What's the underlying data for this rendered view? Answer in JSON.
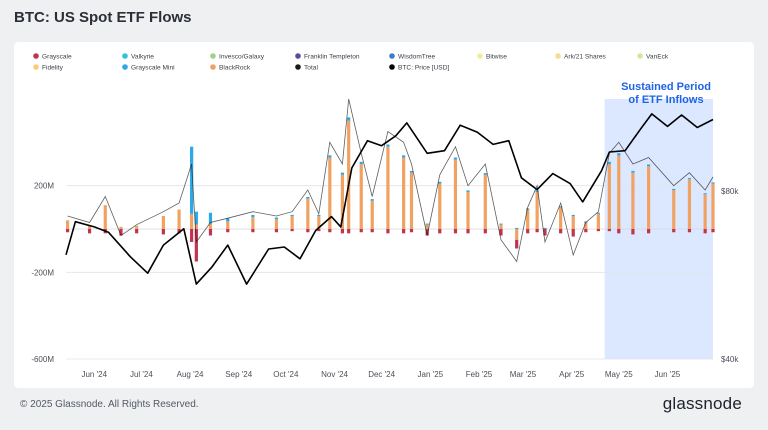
{
  "page": {
    "title": "BTC: US Spot ETF Flows",
    "copyright": "© 2025 Glassnode. All Rights Reserved.",
    "logo": "glassnode"
  },
  "chart_data": {
    "type": "bar",
    "title": "BTC: US Spot ETF Flows",
    "annotation": [
      "Sustained Period",
      "of ETF Inflows"
    ],
    "annotation_color": "#1f63e6",
    "highlight_region": {
      "from": "2025-04-22",
      "to": "2025-06-30",
      "color": "#dbe8ff"
    },
    "legend_position": "top",
    "grid": "horizontal",
    "x_axis": {
      "type": "date",
      "range": [
        "2024-05-14",
        "2025-06-30"
      ],
      "tick_labels": [
        "Jun '24",
        "Jul '24",
        "Aug '24",
        "Sep '24",
        "Oct '24",
        "Nov '24",
        "Dec '24",
        "Jan '25",
        "Feb '25",
        "Mar '25",
        "Apr '25",
        "May '25",
        "Jun '25"
      ],
      "tick_dates": [
        "2024-06-01",
        "2024-07-01",
        "2024-08-01",
        "2024-09-01",
        "2024-10-01",
        "2024-11-01",
        "2024-12-01",
        "2025-01-01",
        "2025-02-01",
        "2025-03-01",
        "2025-04-01",
        "2025-05-01",
        "2025-06-01"
      ]
    },
    "y_axis_left": {
      "label": "",
      "range": [
        -600000000,
        600000000
      ],
      "tick_values": [
        -600000000,
        -200000000,
        200000000
      ],
      "tick_labels": [
        "-600M",
        "-200M",
        "200M"
      ]
    },
    "y_axis_right": {
      "label": "",
      "scale": "log",
      "range": [
        40000,
        117000
      ],
      "tick_values": [
        40000,
        80000
      ],
      "tick_labels": [
        "$40k",
        "$80k"
      ]
    },
    "legend": [
      {
        "name": "Grayscale",
        "color": "#c2334f"
      },
      {
        "name": "Valkyrie",
        "color": "#2ec4d6"
      },
      {
        "name": "Invesco/Galaxy",
        "color": "#9fd18a"
      },
      {
        "name": "Franklin Templeton",
        "color": "#5b4a9e"
      },
      {
        "name": "WisdomTree",
        "color": "#3b7fc4"
      },
      {
        "name": "Bitwise",
        "color": "#f2ed9e"
      },
      {
        "name": "Ark/21 Shares",
        "color": "#f6dc96"
      },
      {
        "name": "VanEck",
        "color": "#cfe89a"
      },
      {
        "name": "Fidelity",
        "color": "#f7cd7a"
      },
      {
        "name": "Grayscale Mini",
        "color": "#2aa8e8"
      },
      {
        "name": "BlackRock",
        "color": "#f0a262"
      },
      {
        "name": "Total",
        "color": "#1a1a1a"
      },
      {
        "name": "BTC: Price [USD]",
        "color": "#000000"
      }
    ],
    "series_flows_usd": {
      "dates": [
        "2024-05-15",
        "2024-05-29",
        "2024-06-08",
        "2024-06-18",
        "2024-06-28",
        "2024-07-15",
        "2024-07-25",
        "2024-08-02",
        "2024-08-05",
        "2024-08-14",
        "2024-08-25",
        "2024-09-10",
        "2024-09-25",
        "2024-10-05",
        "2024-10-15",
        "2024-10-22",
        "2024-10-29",
        "2024-11-06",
        "2024-11-10",
        "2024-11-18",
        "2024-11-25",
        "2024-12-05",
        "2024-12-15",
        "2024-12-20",
        "2024-12-30",
        "2025-01-07",
        "2025-01-17",
        "2025-01-25",
        "2025-02-05",
        "2025-02-15",
        "2025-02-25",
        "2025-03-04",
        "2025-03-10",
        "2025-03-15",
        "2025-03-25",
        "2025-04-02",
        "2025-04-10",
        "2025-04-18",
        "2025-04-25",
        "2025-05-01",
        "2025-05-10",
        "2025-05-20",
        "2025-06-05",
        "2025-06-15",
        "2025-06-25",
        "2025-06-30"
      ],
      "total": [
        60000000,
        30000000,
        150000000,
        -30000000,
        20000000,
        80000000,
        120000000,
        300000000,
        -60000000,
        30000000,
        50000000,
        80000000,
        60000000,
        80000000,
        180000000,
        70000000,
        400000000,
        300000000,
        600000000,
        350000000,
        150000000,
        450000000,
        400000000,
        300000000,
        -30000000,
        250000000,
        380000000,
        200000000,
        300000000,
        -50000000,
        -150000000,
        100000000,
        200000000,
        -60000000,
        120000000,
        -120000000,
        30000000,
        80000000,
        350000000,
        400000000,
        300000000,
        330000000,
        200000000,
        260000000,
        180000000,
        240000000
      ],
      "blackrock": [
        40000000,
        15000000,
        110000000,
        10000000,
        15000000,
        60000000,
        90000000,
        70000000,
        20000000,
        25000000,
        35000000,
        55000000,
        45000000,
        60000000,
        140000000,
        60000000,
        330000000,
        250000000,
        500000000,
        300000000,
        130000000,
        380000000,
        330000000,
        260000000,
        20000000,
        210000000,
        320000000,
        170000000,
        250000000,
        20000000,
        -50000000,
        90000000,
        170000000,
        0,
        100000000,
        60000000,
        30000000,
        70000000,
        300000000,
        340000000,
        260000000,
        290000000,
        180000000,
        230000000,
        160000000,
        210000000
      ],
      "grayscale": [
        -15000000,
        -20000000,
        -20000000,
        -30000000,
        -20000000,
        -25000000,
        -20000000,
        -60000000,
        -150000000,
        -30000000,
        -15000000,
        -15000000,
        -15000000,
        -10000000,
        -15000000,
        -10000000,
        -15000000,
        -20000000,
        -20000000,
        -15000000,
        -15000000,
        -20000000,
        -20000000,
        -15000000,
        -30000000,
        -20000000,
        -20000000,
        -20000000,
        -20000000,
        -30000000,
        -40000000,
        -20000000,
        -15000000,
        -30000000,
        -20000000,
        -35000000,
        -15000000,
        -10000000,
        -10000000,
        -20000000,
        -25000000,
        -20000000,
        -15000000,
        -15000000,
        -20000000,
        -15000000
      ],
      "grayscale_mini": [
        0,
        0,
        0,
        0,
        0,
        0,
        0,
        310000000,
        60000000,
        50000000,
        15000000,
        10000000,
        8000000,
        5000000,
        8000000,
        5000000,
        10000000,
        10000000,
        15000000,
        10000000,
        8000000,
        10000000,
        10000000,
        8000000,
        5000000,
        8000000,
        10000000,
        8000000,
        8000000,
        5000000,
        5000000,
        5000000,
        8000000,
        5000000,
        5000000,
        5000000,
        5000000,
        5000000,
        10000000,
        10000000,
        8000000,
        8000000,
        5000000,
        5000000,
        5000000,
        5000000
      ]
    },
    "series_btc_price_usd": {
      "dates": [
        "2024-05-14",
        "2024-05-20",
        "2024-06-01",
        "2024-06-10",
        "2024-06-24",
        "2024-07-05",
        "2024-07-15",
        "2024-07-28",
        "2024-08-05",
        "2024-08-15",
        "2024-08-25",
        "2024-09-06",
        "2024-09-20",
        "2024-09-30",
        "2024-10-10",
        "2024-10-20",
        "2024-10-30",
        "2024-11-05",
        "2024-11-12",
        "2024-11-22",
        "2024-12-01",
        "2024-12-10",
        "2024-12-17",
        "2024-12-30",
        "2025-01-10",
        "2025-01-20",
        "2025-01-31",
        "2025-02-10",
        "2025-02-20",
        "2025-02-28",
        "2025-03-10",
        "2025-03-20",
        "2025-03-31",
        "2025-04-08",
        "2025-04-20",
        "2025-04-25",
        "2025-05-05",
        "2025-05-15",
        "2025-05-22",
        "2025-06-01",
        "2025-06-10",
        "2025-06-20",
        "2025-06-30"
      ],
      "values": [
        61500,
        70500,
        69000,
        67500,
        61000,
        57000,
        64000,
        68500,
        54500,
        58500,
        64000,
        54500,
        63000,
        63500,
        60500,
        68000,
        72000,
        69000,
        88000,
        98500,
        96500,
        100500,
        106000,
        93500,
        94500,
        105000,
        102000,
        97000,
        98500,
        84500,
        80500,
        86000,
        82500,
        76500,
        87000,
        94000,
        94500,
        103500,
        110000,
        104500,
        109500,
        104000,
        107500
      ]
    }
  }
}
